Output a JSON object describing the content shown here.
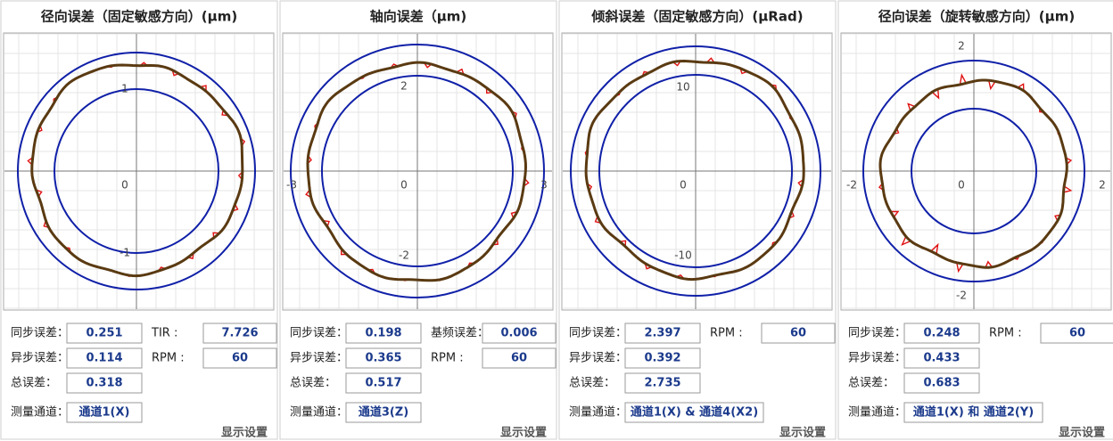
{
  "panels": [
    {
      "title": "径向误差（固定敏感方向）(μm)",
      "y_labels": [
        1,
        0,
        -1
      ],
      "x_labels": [],
      "rows": [
        [
          {
            "label": "同步误差：",
            "value": "0.251"
          },
          {
            "label": "TIR :",
            "value": "7.726"
          }
        ],
        [
          {
            "label": "异步误差：",
            "value": "0.114"
          },
          {
            "label": "RPM :",
            "value": "60"
          }
        ],
        [
          {
            "label": "总误差：",
            "value": "0.318"
          }
        ]
      ],
      "channel": {
        "label": "测量通道：",
        "value": "通道1(X)"
      },
      "settings": "显示设置"
    },
    {
      "title": "轴向误差（μm)",
      "y_labels": [
        2,
        0,
        -2
      ],
      "x_labels": [
        -3,
        3
      ],
      "rows": [
        [
          {
            "label": "同步误差：",
            "value": "0.198"
          },
          {
            "label": "基频误差：",
            "value": "0.006"
          }
        ],
        [
          {
            "label": "异步误差：",
            "value": "0.365"
          },
          {
            "label": "RPM :",
            "value": "60"
          }
        ],
        [
          {
            "label": "总误差：",
            "value": "0.517"
          }
        ]
      ],
      "channel": {
        "label": "测量通道：",
        "value": "通道3(Z)"
      },
      "settings": "显示设置"
    },
    {
      "title": "倾斜误差（固定敏感方向）(μRad)",
      "y_labels": [
        10,
        0,
        -10
      ],
      "x_labels": [],
      "rows": [
        [
          {
            "label": "同步误差：",
            "value": "2.397"
          },
          {
            "label": "RPM :",
            "value": "60"
          }
        ],
        [
          {
            "label": "异步误差：",
            "value": "0.392"
          }
        ],
        [
          {
            "label": "总误差：",
            "value": "2.735"
          }
        ]
      ],
      "channel": {
        "label": "测量通道：",
        "value": "通道1(X) & 通道4(X2)"
      },
      "settings": "显示设置"
    },
    {
      "title": "径向误差（旋转敏感方向）(μm)",
      "y_labels": [
        2,
        0,
        -2
      ],
      "x_labels": [
        -2,
        2
      ],
      "rows": [
        [
          {
            "label": "同步误差：",
            "value": "0.248"
          },
          {
            "label": "RPM :",
            "value": "60"
          }
        ],
        [
          {
            "label": "异步误差：",
            "value": "0.433"
          }
        ],
        [
          {
            "label": "总误差：",
            "value": "0.683"
          }
        ]
      ],
      "channel": {
        "label": "测量通道：",
        "value": "通道1(X) 和 通道2(Y)"
      },
      "settings": "显示设置"
    }
  ]
}
